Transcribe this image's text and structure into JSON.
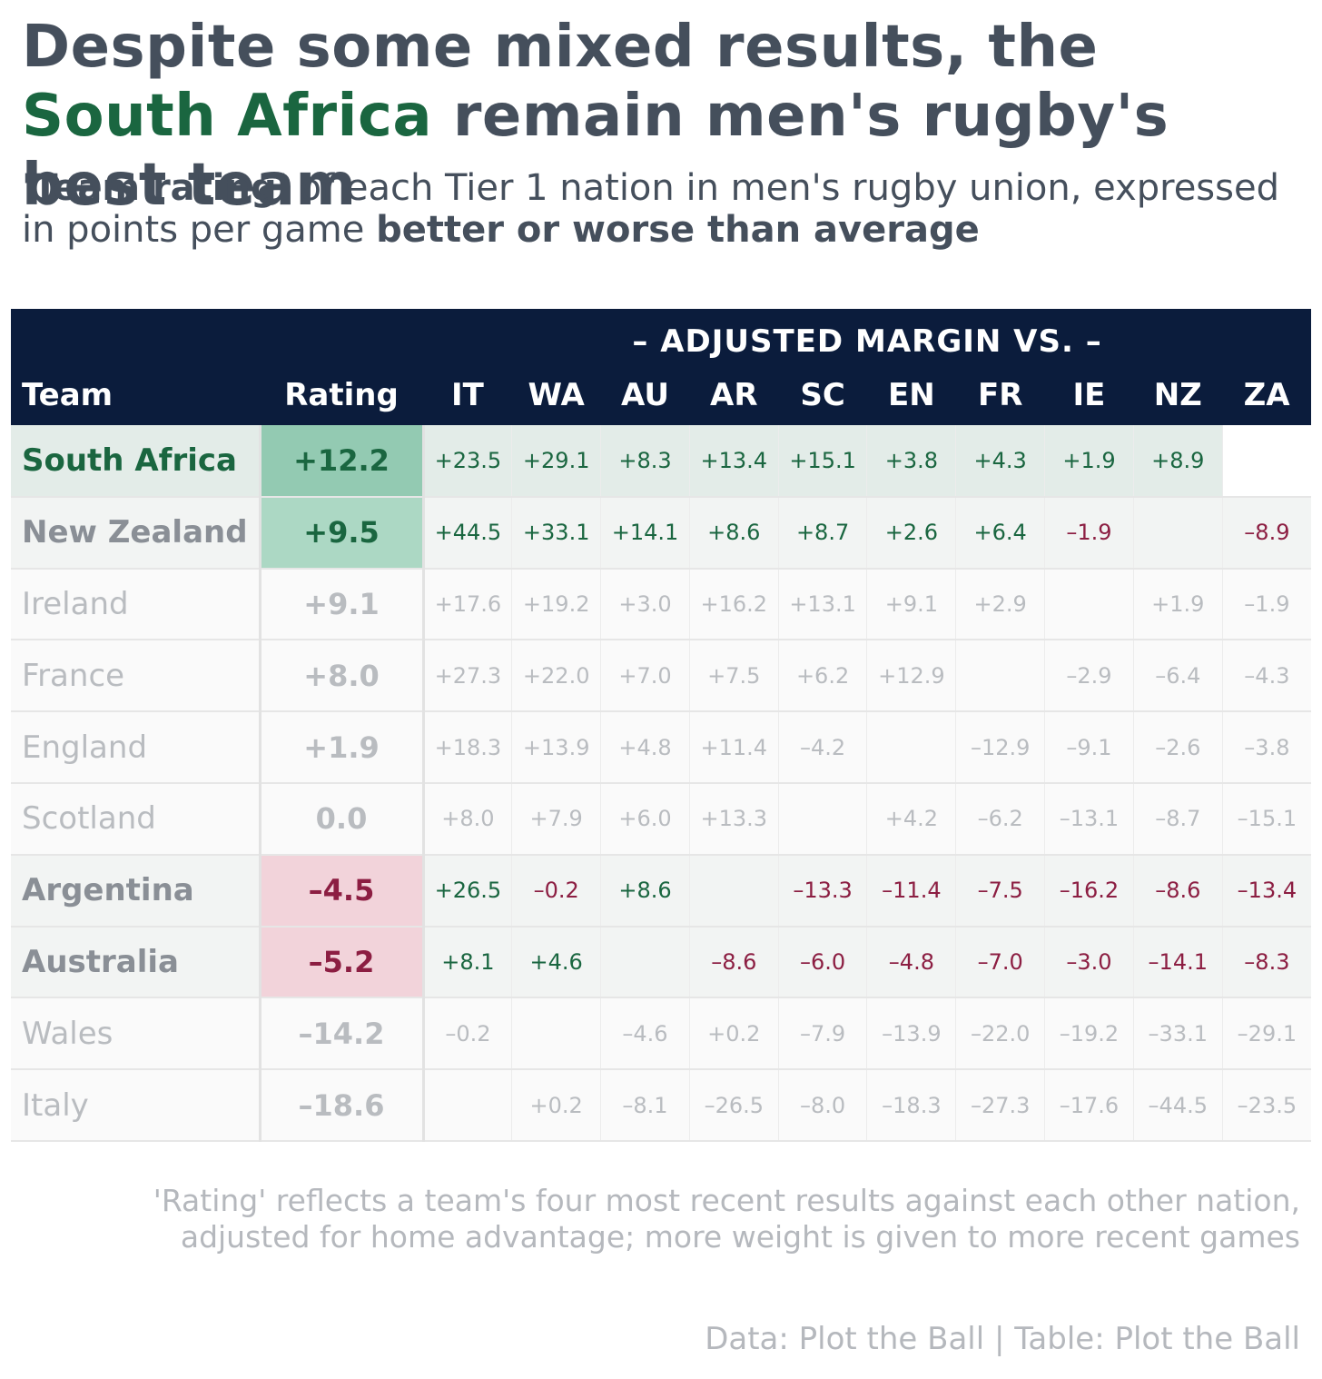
{
  "header": {
    "title_part1": "Despite some mixed results, the ",
    "title_highlight": "South Africa",
    "title_part2": " remain men's rugby's best team",
    "subtitle_bold1": "'Team rating'",
    "subtitle_part1": " of each Tier 1 nation in men's rugby union, expressed in points per game ",
    "subtitle_bold2": "better or worse than average"
  },
  "colors": {
    "navy": "#0b1c3c",
    "green": "#1a6640",
    "red": "#8c1e42",
    "text": "#454f5c",
    "muted": "#b9bcc0",
    "rating_green_strong": "#93cab2",
    "rating_green_light": "#acd8c4",
    "rating_red": "#f2d3da"
  },
  "chart_data": {
    "type": "table",
    "spanner_label": "– ADJUSTED MARGIN VS. –",
    "team_header": "Team",
    "rating_header": "Rating",
    "opponents": [
      "IT",
      "WA",
      "AU",
      "AR",
      "SC",
      "EN",
      "FR",
      "IE",
      "NZ",
      "ZA"
    ],
    "rows": [
      {
        "team": "South Africa",
        "rating": "+12.2",
        "emphasis": 1,
        "rating_fill": "#93cab2",
        "values": [
          "+23.5",
          "+29.1",
          "+8.3",
          "+13.4",
          "+15.1",
          "+3.8",
          "+4.3",
          "+1.9",
          "+8.9",
          ""
        ]
      },
      {
        "team": "New Zealand",
        "rating": "+9.5",
        "emphasis": 2,
        "rating_fill": "#acd8c4",
        "values": [
          "+44.5",
          "+33.1",
          "+14.1",
          "+8.6",
          "+8.7",
          "+2.6",
          "+6.4",
          "–1.9",
          "",
          "–8.9"
        ]
      },
      {
        "team": "Ireland",
        "rating": "+9.1",
        "emphasis": 3,
        "rating_fill": "",
        "values": [
          "+17.6",
          "+19.2",
          "+3.0",
          "+16.2",
          "+13.1",
          "+9.1",
          "+2.9",
          "",
          "+1.9",
          "–1.9"
        ]
      },
      {
        "team": "France",
        "rating": "+8.0",
        "emphasis": 3,
        "rating_fill": "",
        "values": [
          "+27.3",
          "+22.0",
          "+7.0",
          "+7.5",
          "+6.2",
          "+12.9",
          "",
          "–2.9",
          "–6.4",
          "–4.3"
        ]
      },
      {
        "team": "England",
        "rating": "+1.9",
        "emphasis": 3,
        "rating_fill": "",
        "values": [
          "+18.3",
          "+13.9",
          "+4.8",
          "+11.4",
          "–4.2",
          "",
          "–12.9",
          "–9.1",
          "–2.6",
          "–3.8"
        ]
      },
      {
        "team": "Scotland",
        "rating": "0.0",
        "emphasis": 3,
        "rating_fill": "",
        "values": [
          "+8.0",
          "+7.9",
          "+6.0",
          "+13.3",
          "",
          "+4.2",
          "–6.2",
          "–13.1",
          "–8.7",
          "–15.1"
        ]
      },
      {
        "team": "Argentina",
        "rating": "–4.5",
        "emphasis": 2,
        "rating_fill": "#f2d3da",
        "values": [
          "+26.5",
          "–0.2",
          "+8.6",
          "",
          "–13.3",
          "–11.4",
          "–7.5",
          "–16.2",
          "–8.6",
          "–13.4"
        ]
      },
      {
        "team": "Australia",
        "rating": "–5.2",
        "emphasis": 2,
        "rating_fill": "#f2d3da",
        "values": [
          "+8.1",
          "+4.6",
          "",
          "–8.6",
          "–6.0",
          "–4.8",
          "–7.0",
          "–3.0",
          "–14.1",
          "–8.3"
        ]
      },
      {
        "team": "Wales",
        "rating": "–14.2",
        "emphasis": 3,
        "rating_fill": "",
        "values": [
          "–0.2",
          "",
          "–4.6",
          "+0.2",
          "–7.9",
          "–13.9",
          "–22.0",
          "–19.2",
          "–33.1",
          "–29.1"
        ]
      },
      {
        "team": "Italy",
        "rating": "–18.6",
        "emphasis": 3,
        "rating_fill": "",
        "values": [
          "",
          "+0.2",
          "–8.1",
          "–26.5",
          "–8.0",
          "–18.3",
          "–27.3",
          "–17.6",
          "–44.5",
          "–23.5"
        ]
      }
    ]
  },
  "footer": {
    "note_line1": "'Rating' reflects a team's four most recent results against each other nation,",
    "note_line2": "adjusted for home advantage; more weight is given to more recent games",
    "source": "Data: Plot the Ball | Table: Plot the Ball"
  }
}
